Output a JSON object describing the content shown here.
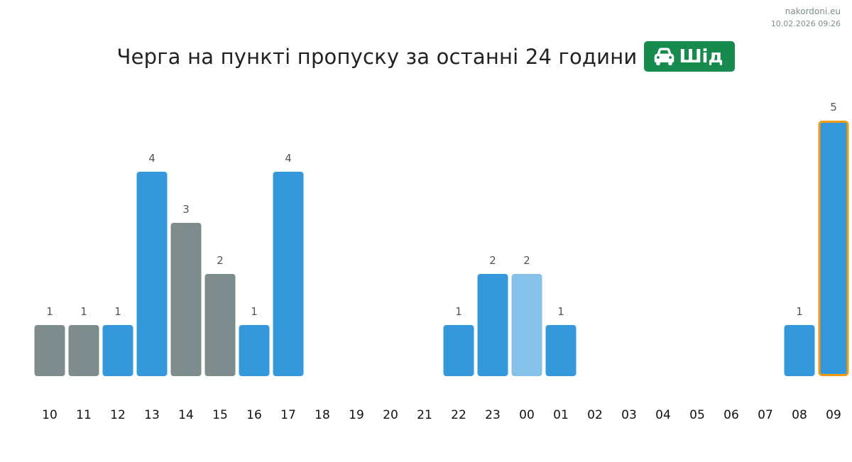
{
  "header": {
    "site": "nakordoni.eu",
    "timestamp": "10.02.2026 09:26"
  },
  "title": {
    "text": "Черга на пункті пропуску за останні 24 години",
    "badge_label": "Шід",
    "badge_icon": "car-icon"
  },
  "colors": {
    "badge": "#178a4d",
    "bar_blue": "#3498db",
    "bar_gray": "#7f8c8d",
    "bar_light": "#85c1e9",
    "highlight_border": "#f39c12",
    "label_text": "#555555",
    "axis_text": "#111111"
  },
  "chart_data": {
    "type": "bar",
    "categories": [
      "10",
      "11",
      "12",
      "13",
      "14",
      "15",
      "16",
      "17",
      "18",
      "19",
      "20",
      "21",
      "22",
      "23",
      "00",
      "01",
      "02",
      "03",
      "04",
      "05",
      "06",
      "07",
      "08",
      "09"
    ],
    "values": [
      1,
      1,
      1,
      4,
      3,
      2,
      1,
      4,
      0,
      0,
      0,
      0,
      1,
      2,
      2,
      1,
      0,
      0,
      0,
      0,
      0,
      0,
      1,
      5
    ],
    "bar_colors": [
      "gray",
      "gray",
      "blue",
      "blue",
      "gray",
      "gray",
      "blue",
      "blue",
      "blue",
      "blue",
      "blue",
      "blue",
      "blue",
      "blue",
      "light",
      "blue",
      "blue",
      "blue",
      "blue",
      "blue",
      "blue",
      "blue",
      "blue",
      "blue"
    ],
    "highlighted_category": "09",
    "data_labels": true,
    "ylim": [
      0,
      5
    ],
    "grid": false,
    "legend": "none"
  }
}
